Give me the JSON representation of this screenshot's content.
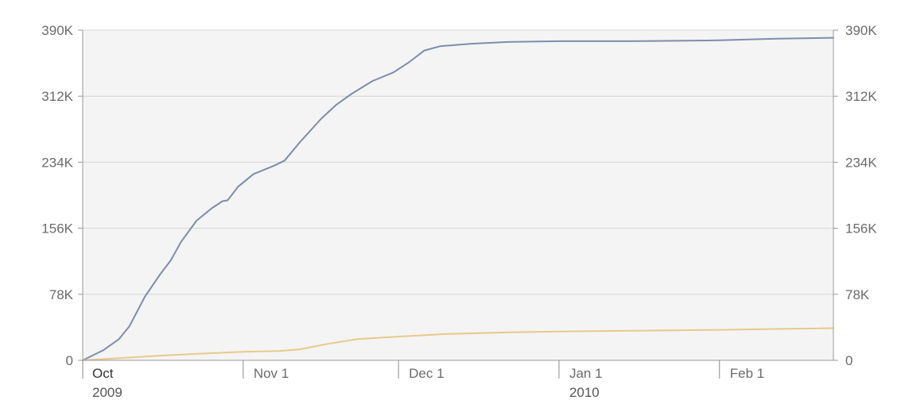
{
  "chart_data": {
    "type": "line",
    "title": "",
    "xlabel": "",
    "ylabel": "",
    "ylim": [
      0,
      390000
    ],
    "xlim": [
      "2009-10-01",
      "2010-02-23"
    ],
    "grid": true,
    "legend": "none",
    "y_ticks": [
      {
        "value": 0,
        "label": "0"
      },
      {
        "value": 78000,
        "label": "78K"
      },
      {
        "value": 156000,
        "label": "156K"
      },
      {
        "value": 234000,
        "label": "234K"
      },
      {
        "value": 312000,
        "label": "312K"
      },
      {
        "value": 390000,
        "label": "390K"
      }
    ],
    "x_ticks": [
      {
        "date": "2009-10-01",
        "label": "Oct",
        "sublabel": "2009"
      },
      {
        "date": "2009-11-01",
        "label": "Nov 1",
        "sublabel": ""
      },
      {
        "date": "2009-12-01",
        "label": "Dec 1",
        "sublabel": ""
      },
      {
        "date": "2010-01-01",
        "label": "Jan 1",
        "sublabel": "2010"
      },
      {
        "date": "2010-02-01",
        "label": "Feb 1",
        "sublabel": ""
      }
    ],
    "series": [
      {
        "color": "#7c8dae",
        "points": [
          {
            "x": "2009-10-01",
            "y": 0
          },
          {
            "x": "2009-10-05",
            "y": 12000
          },
          {
            "x": "2009-10-08",
            "y": 25000
          },
          {
            "x": "2009-10-10",
            "y": 40000
          },
          {
            "x": "2009-10-13",
            "y": 75000
          },
          {
            "x": "2009-10-16",
            "y": 102000
          },
          {
            "x": "2009-10-18",
            "y": 118000
          },
          {
            "x": "2009-10-20",
            "y": 140000
          },
          {
            "x": "2009-10-23",
            "y": 165000
          },
          {
            "x": "2009-10-26",
            "y": 180000
          },
          {
            "x": "2009-10-28",
            "y": 188000
          },
          {
            "x": "2009-10-29",
            "y": 189000
          },
          {
            "x": "2009-10-31",
            "y": 205000
          },
          {
            "x": "2009-11-03",
            "y": 220000
          },
          {
            "x": "2009-11-07",
            "y": 230000
          },
          {
            "x": "2009-11-09",
            "y": 236000
          },
          {
            "x": "2009-11-12",
            "y": 258000
          },
          {
            "x": "2009-11-16",
            "y": 285000
          },
          {
            "x": "2009-11-19",
            "y": 302000
          },
          {
            "x": "2009-11-22",
            "y": 315000
          },
          {
            "x": "2009-11-26",
            "y": 330000
          },
          {
            "x": "2009-11-30",
            "y": 340000
          },
          {
            "x": "2009-12-03",
            "y": 352000
          },
          {
            "x": "2009-12-06",
            "y": 366000
          },
          {
            "x": "2009-12-09",
            "y": 371000
          },
          {
            "x": "2009-12-15",
            "y": 374000
          },
          {
            "x": "2009-12-22",
            "y": 376000
          },
          {
            "x": "2010-01-01",
            "y": 377000
          },
          {
            "x": "2010-01-15",
            "y": 377000
          },
          {
            "x": "2010-02-01",
            "y": 378000
          },
          {
            "x": "2010-02-12",
            "y": 380000
          },
          {
            "x": "2010-02-23",
            "y": 381000
          }
        ]
      },
      {
        "color": "#e8c98a",
        "points": [
          {
            "x": "2009-10-01",
            "y": 0
          },
          {
            "x": "2009-10-08",
            "y": 2500
          },
          {
            "x": "2009-10-16",
            "y": 5500
          },
          {
            "x": "2009-10-24",
            "y": 8000
          },
          {
            "x": "2009-11-01",
            "y": 10000
          },
          {
            "x": "2009-11-08",
            "y": 11000
          },
          {
            "x": "2009-11-12",
            "y": 13000
          },
          {
            "x": "2009-11-17",
            "y": 19000
          },
          {
            "x": "2009-11-23",
            "y": 25000
          },
          {
            "x": "2009-12-01",
            "y": 28000
          },
          {
            "x": "2009-12-10",
            "y": 31000
          },
          {
            "x": "2009-12-22",
            "y": 33000
          },
          {
            "x": "2010-01-01",
            "y": 34000
          },
          {
            "x": "2010-01-15",
            "y": 35000
          },
          {
            "x": "2010-02-01",
            "y": 36000
          },
          {
            "x": "2010-02-12",
            "y": 37000
          },
          {
            "x": "2010-02-23",
            "y": 38000
          }
        ]
      }
    ]
  }
}
